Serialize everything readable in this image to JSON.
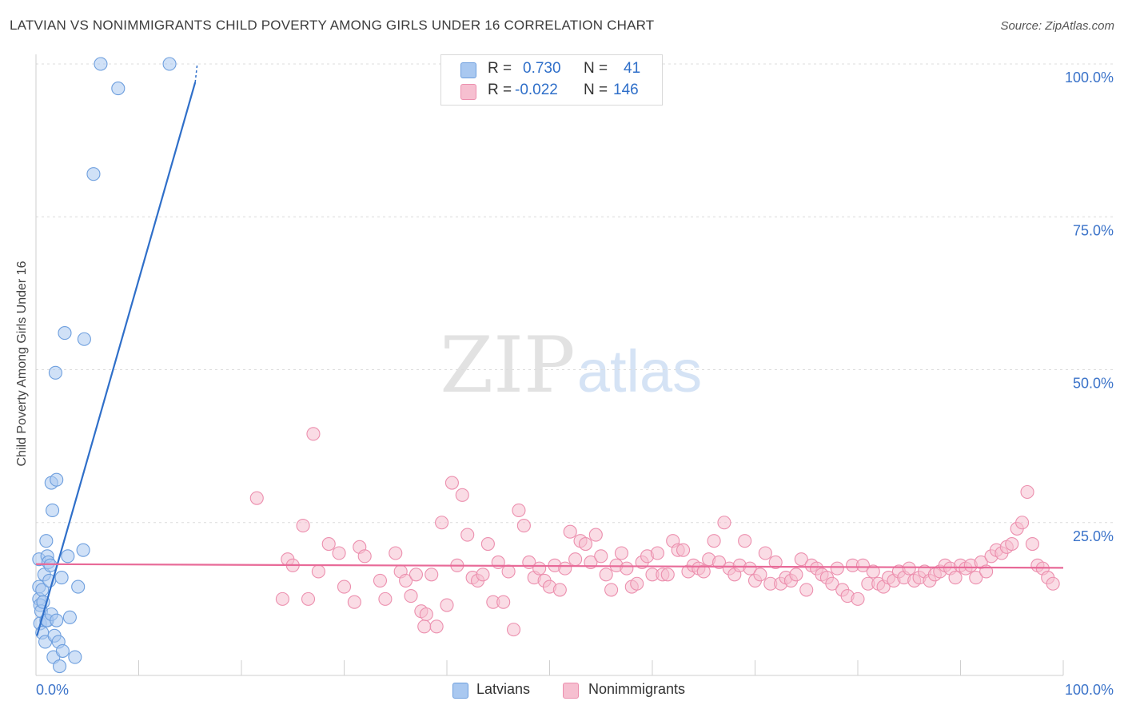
{
  "title": "LATVIAN VS NONIMMIGRANTS CHILD POVERTY AMONG GIRLS UNDER 16 CORRELATION CHART",
  "source": "Source: ZipAtlas.com",
  "watermark": {
    "zip": "ZIP",
    "atlas": "atlas"
  },
  "legend": {
    "rows": [
      {
        "r_label": "R =",
        "r_value": "0.730",
        "n_label": "N =",
        "n_value": "41",
        "color": "#a9c8f0",
        "border": "#6e9fde"
      },
      {
        "r_label": "R =",
        "r_value": "-0.022",
        "n_label": "N =",
        "n_value": "146",
        "color": "#f6bfd0",
        "border": "#ec8fae"
      }
    ]
  },
  "bottom_legend": [
    {
      "label": "Latvians",
      "color": "#a9c8f0",
      "border": "#6e9fde"
    },
    {
      "label": "Nonimmigrants",
      "color": "#f6bfd0",
      "border": "#ec8fae"
    }
  ],
  "chart_data": {
    "type": "scatter",
    "title": "LATVIAN VS NONIMMIGRANTS CHILD POVERTY AMONG GIRLS UNDER 16 CORRELATION CHART",
    "xlabel": "",
    "ylabel": "Child Poverty Among Girls Under 16",
    "xlim": [
      0,
      100
    ],
    "ylim": [
      0,
      100
    ],
    "x_tick_labels": [
      "0.0%",
      "100.0%"
    ],
    "y_tick_labels": [
      "25.0%",
      "50.0%",
      "75.0%",
      "100.0%"
    ],
    "y_ticks": [
      25,
      50,
      75,
      100
    ],
    "grid": true,
    "series": [
      {
        "name": "Latvians",
        "color": "#a9c8f0",
        "edge": "#6e9fde",
        "line_color": "#2f6fc9",
        "trend": {
          "x0": 0.1,
          "y0": 6.5,
          "x1": 15.5,
          "y1": 97.0
        },
        "trend_dashed": {
          "x0": 15.5,
          "y0": 97.0,
          "x1": 15.7,
          "y1": 100.0
        },
        "x": [
          0.3,
          0.3,
          0.3,
          0.4,
          0.4,
          0.5,
          0.6,
          0.6,
          0.7,
          0.8,
          0.9,
          1.0,
          1.0,
          1.1,
          1.1,
          1.2,
          1.3,
          1.4,
          1.5,
          1.5,
          1.6,
          1.7,
          1.8,
          1.9,
          2.0,
          2.0,
          2.2,
          2.3,
          2.5,
          2.6,
          2.8,
          3.1,
          3.3,
          3.8,
          4.1,
          4.6,
          4.7,
          5.6,
          6.3,
          8.0,
          13.0
        ],
        "y": [
          19.0,
          14.5,
          12.5,
          11.5,
          8.5,
          10.5,
          7.0,
          14.0,
          12.0,
          16.5,
          5.5,
          22.0,
          9.0,
          19.5,
          9.0,
          18.5,
          15.5,
          18.0,
          10.0,
          31.5,
          27.0,
          3.0,
          6.5,
          49.5,
          9.0,
          32.0,
          5.5,
          1.5,
          16.0,
          4.0,
          56.0,
          19.5,
          9.5,
          3.0,
          14.5,
          20.5,
          55.0,
          82.0,
          100.0,
          96.0,
          100.0
        ]
      },
      {
        "name": "Nonimmigrants",
        "color": "#f6bfd0",
        "edge": "#ec8fae",
        "line_color": "#e86a98",
        "trend": {
          "x0": 0.0,
          "y0": 18.2,
          "x1": 100.0,
          "y1": 17.6
        },
        "x": [
          21.5,
          24.0,
          24.5,
          25.0,
          26.0,
          26.5,
          27.0,
          27.5,
          28.5,
          29.5,
          30.0,
          31.0,
          31.5,
          32.0,
          33.5,
          34.0,
          35.0,
          35.5,
          36.0,
          36.5,
          37.0,
          37.5,
          37.8,
          38.0,
          38.5,
          39.0,
          39.5,
          40.0,
          40.5,
          41.0,
          41.5,
          42.0,
          42.5,
          43.0,
          43.5,
          44.0,
          44.5,
          45.0,
          45.5,
          46.0,
          46.5,
          47.0,
          47.5,
          48.0,
          48.5,
          49.0,
          49.5,
          50.0,
          50.5,
          51.0,
          51.5,
          52.0,
          52.5,
          53.0,
          53.5,
          54.0,
          54.5,
          55.0,
          55.5,
          56.0,
          56.5,
          57.0,
          57.5,
          58.0,
          58.5,
          59.0,
          59.5,
          60.0,
          60.5,
          61.0,
          61.5,
          62.0,
          62.5,
          63.0,
          63.5,
          64.0,
          64.5,
          65.0,
          65.5,
          66.0,
          66.5,
          67.0,
          67.5,
          68.0,
          68.5,
          69.0,
          69.5,
          70.0,
          70.5,
          71.0,
          71.5,
          72.0,
          72.5,
          73.0,
          73.5,
          74.0,
          74.5,
          75.0,
          75.5,
          76.0,
          76.5,
          77.0,
          77.5,
          78.0,
          78.5,
          79.0,
          79.5,
          80.0,
          80.5,
          81.0,
          81.5,
          82.0,
          82.5,
          83.0,
          83.5,
          84.0,
          84.5,
          85.0,
          85.5,
          86.0,
          86.5,
          87.0,
          87.5,
          88.0,
          88.5,
          89.0,
          89.5,
          90.0,
          90.5,
          91.0,
          91.5,
          92.0,
          92.5,
          93.0,
          93.5,
          94.0,
          94.5,
          95.0,
          95.5,
          96.0,
          96.5,
          97.0,
          97.5,
          98.0,
          98.5,
          99.0
        ],
        "y": [
          29.0,
          12.5,
          19.0,
          18.0,
          24.5,
          12.5,
          39.5,
          17.0,
          21.5,
          20.0,
          14.5,
          12.0,
          21.0,
          19.5,
          15.5,
          12.5,
          20.0,
          17.0,
          15.5,
          13.0,
          16.5,
          10.5,
          8.0,
          10.0,
          16.5,
          8.0,
          25.0,
          11.5,
          31.5,
          18.0,
          29.5,
          23.0,
          16.0,
          15.5,
          16.5,
          21.5,
          12.0,
          18.5,
          12.0,
          17.0,
          7.5,
          27.0,
          24.5,
          18.5,
          16.0,
          17.5,
          15.5,
          14.5,
          18.0,
          14.0,
          17.5,
          23.5,
          19.0,
          22.0,
          21.5,
          18.5,
          23.0,
          19.5,
          16.5,
          14.0,
          18.0,
          20.0,
          17.5,
          14.5,
          15.0,
          18.5,
          19.5,
          16.5,
          20.0,
          16.5,
          16.5,
          22.0,
          20.5,
          20.5,
          17.0,
          18.0,
          17.5,
          17.0,
          19.0,
          22.0,
          18.5,
          25.0,
          17.5,
          16.5,
          18.0,
          22.0,
          17.5,
          15.5,
          16.5,
          20.0,
          15.0,
          18.5,
          15.0,
          16.0,
          15.5,
          16.5,
          19.0,
          14.0,
          18.0,
          17.5,
          16.5,
          16.0,
          15.0,
          17.5,
          14.0,
          13.0,
          18.0,
          12.5,
          18.0,
          15.0,
          17.0,
          15.0,
          14.5,
          16.0,
          15.5,
          17.0,
          16.0,
          17.5,
          15.5,
          16.0,
          17.0,
          15.5,
          16.5,
          17.0,
          18.0,
          17.5,
          16.0,
          18.0,
          17.5,
          18.0,
          16.0,
          18.5,
          17.0,
          19.5,
          20.5,
          20.0,
          21.0,
          21.5,
          24.0,
          25.0,
          30.0,
          21.5,
          18.0,
          17.5,
          16.0,
          15.0
        ],
        "_note": "approximate readings"
      }
    ]
  }
}
